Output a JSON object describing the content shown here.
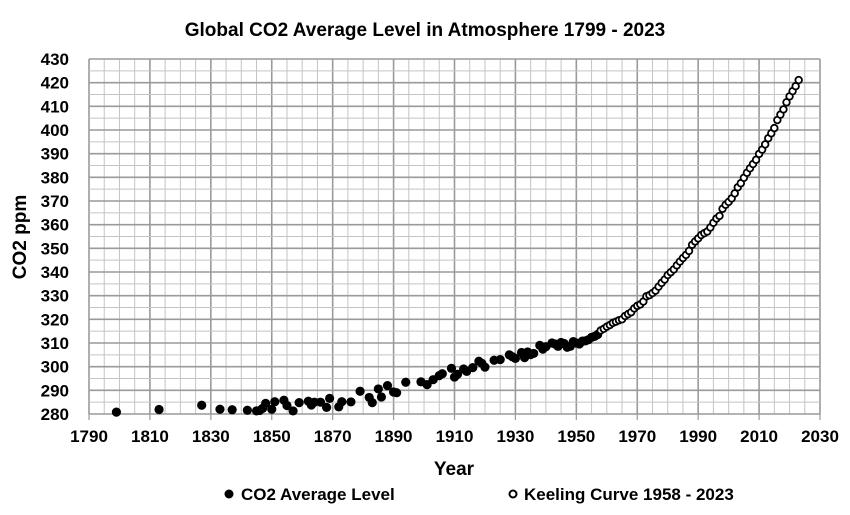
{
  "chart_data": {
    "type": "scatter",
    "title": "Global CO2  Average Level in Atmosphere 1799 - 2023",
    "xlabel": "Year",
    "ylabel": "CO2 ppm",
    "xlim": [
      1790,
      2030
    ],
    "ylim": [
      280,
      430
    ],
    "x_major_step": 20,
    "x_minor_step": 5,
    "y_major_step": 10,
    "y_minor_step": 5,
    "grid": true,
    "legend_position": "bottom",
    "x_ticks": [
      "1790",
      "1810",
      "1830",
      "1850",
      "1870",
      "1890",
      "1910",
      "1930",
      "1950",
      "1970",
      "1990",
      "2010",
      "2030"
    ],
    "y_ticks": [
      "280",
      "290",
      "300",
      "310",
      "320",
      "330",
      "340",
      "350",
      "360",
      "370",
      "380",
      "390",
      "400",
      "410",
      "420",
      "430"
    ],
    "colors": {
      "marker": "#000000",
      "grid_major": "#9a9a9a",
      "grid_minor": "#c4c4c4"
    },
    "series": [
      {
        "name": "CO2 Average Level",
        "marker": "filled-circle",
        "x": [
          1799,
          1813,
          1827,
          1833,
          1837,
          1842,
          1845,
          1846,
          1847,
          1848,
          1850,
          1851,
          1854,
          1855,
          1857,
          1859,
          1862,
          1863,
          1864,
          1866,
          1868,
          1869,
          1872,
          1873,
          1876,
          1879,
          1882,
          1883,
          1885,
          1886,
          1888,
          1890,
          1891,
          1894,
          1899,
          1901,
          1903,
          1905,
          1906,
          1909,
          1910,
          1911,
          1913,
          1914,
          1916,
          1918,
          1919,
          1920,
          1923,
          1925,
          1928,
          1929,
          1930,
          1932,
          1933,
          1934,
          1935,
          1936,
          1938,
          1939,
          1940,
          1942,
          1943,
          1944,
          1945,
          1946,
          1947,
          1948,
          1949,
          1950,
          1951,
          1952,
          1953,
          1954,
          1955,
          1956,
          1957
        ],
        "y": [
          280.8,
          281.9,
          283.7,
          282.0,
          281.8,
          281.6,
          281.3,
          281.5,
          282.4,
          284.5,
          282.0,
          285.2,
          285.8,
          283.6,
          281.3,
          284.8,
          285.4,
          283.8,
          285.0,
          285.0,
          282.8,
          286.6,
          283.0,
          285.2,
          285.1,
          289.6,
          287.0,
          284.8,
          290.6,
          287.2,
          292.0,
          289.3,
          289.0,
          293.4,
          293.6,
          292.4,
          294.5,
          296.2,
          297.0,
          299.3,
          295.6,
          296.8,
          299.0,
          298.0,
          299.6,
          302.3,
          301.4,
          299.8,
          302.7,
          303.0,
          305.0,
          304.2,
          303.5,
          306.0,
          303.8,
          306.2,
          305.1,
          305.6,
          309.0,
          307.4,
          308.4,
          310.0,
          309.6,
          308.6,
          310.2,
          309.8,
          308.2,
          308.6,
          310.6,
          310.0,
          309.6,
          310.8,
          310.9,
          311.4,
          312.4,
          312.8,
          313.6
        ]
      },
      {
        "name": "Keeling Curve 1958 - 2023",
        "marker": "hollow-circle",
        "x": [
          1958,
          1959,
          1960,
          1961,
          1962,
          1963,
          1964,
          1965,
          1966,
          1967,
          1968,
          1969,
          1970,
          1971,
          1972,
          1973,
          1974,
          1975,
          1976,
          1977,
          1978,
          1979,
          1980,
          1981,
          1982,
          1983,
          1984,
          1985,
          1986,
          1987,
          1988,
          1989,
          1990,
          1991,
          1992,
          1993,
          1994,
          1995,
          1996,
          1997,
          1998,
          1999,
          2000,
          2001,
          2002,
          2003,
          2004,
          2005,
          2006,
          2007,
          2008,
          2009,
          2010,
          2011,
          2012,
          2013,
          2014,
          2015,
          2016,
          2017,
          2018,
          2019,
          2020,
          2021,
          2022,
          2023
        ],
        "y": [
          315.3,
          316.0,
          316.9,
          317.6,
          318.5,
          319.0,
          319.6,
          320.0,
          321.4,
          322.2,
          323.0,
          324.6,
          325.7,
          326.3,
          327.5,
          329.7,
          330.2,
          331.1,
          332.1,
          333.8,
          335.4,
          336.8,
          338.7,
          339.9,
          341.1,
          342.8,
          344.4,
          345.9,
          347.2,
          348.9,
          351.5,
          352.9,
          354.2,
          355.6,
          356.4,
          357.1,
          358.8,
          360.8,
          362.6,
          363.7,
          366.7,
          368.4,
          369.6,
          371.1,
          373.2,
          375.8,
          377.5,
          379.8,
          381.9,
          383.8,
          385.6,
          387.4,
          389.9,
          391.7,
          393.9,
          396.5,
          398.6,
          400.8,
          404.2,
          406.5,
          408.7,
          411.7,
          414.2,
          416.4,
          418.5,
          421.1
        ]
      }
    ]
  },
  "legend": {
    "items": [
      {
        "label": "CO2 Average Level",
        "marker": "filled-circle"
      },
      {
        "label": "Keeling Curve 1958 - 2023",
        "marker": "hollow-circle"
      }
    ]
  }
}
